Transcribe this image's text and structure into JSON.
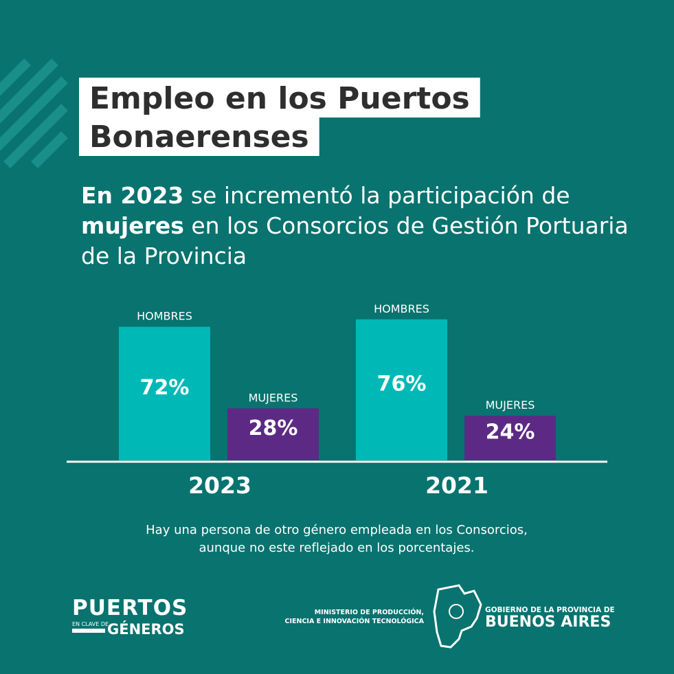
{
  "title_lines": [
    "Empleo en los Puertos",
    "Bonaerenses"
  ],
  "subtitle_lines": [
    [
      {
        "text": "En 2023",
        "bold": true
      },
      {
        "text": " se incrementó la participación de",
        "bold": false
      }
    ],
    [
      {
        "text": "mujeres",
        "bold": true
      },
      {
        "text": " en los Consorcios de Gestión Portuaria",
        "bold": false
      }
    ],
    [
      {
        "text": "de la Provincia",
        "bold": false
      }
    ]
  ],
  "chart_data": {
    "type": "bar",
    "categories": [
      "2023",
      "2021"
    ],
    "series": [
      {
        "name": "HOMBRES",
        "color": "#00b9b6",
        "values": [
          72,
          76
        ],
        "value_labels": [
          "72%",
          "76%"
        ]
      },
      {
        "name": "MUJERES",
        "color": "#5c2a85",
        "values": [
          28,
          24
        ],
        "value_labels": [
          "28%",
          "24%"
        ]
      }
    ]
  },
  "note_lines": [
    "Hay una persona de otro género empleada en los Consorcios,",
    "aunque no este reflejado en los porcentajes."
  ],
  "footer": {
    "logo": {
      "top": "PUERTOS",
      "small": "EN CLAVE DE",
      "bottom": "GÉNEROS"
    },
    "ministry_lines": [
      "MINISTERIO DE PRODUCCIÓN,",
      "CIENCIA E INNOVACIÓN TECNOLÓGICA"
    ],
    "government": {
      "top": "GOBIERNO DE LA PROVINCIA DE",
      "bottom": "BUENOS AIRES"
    }
  }
}
